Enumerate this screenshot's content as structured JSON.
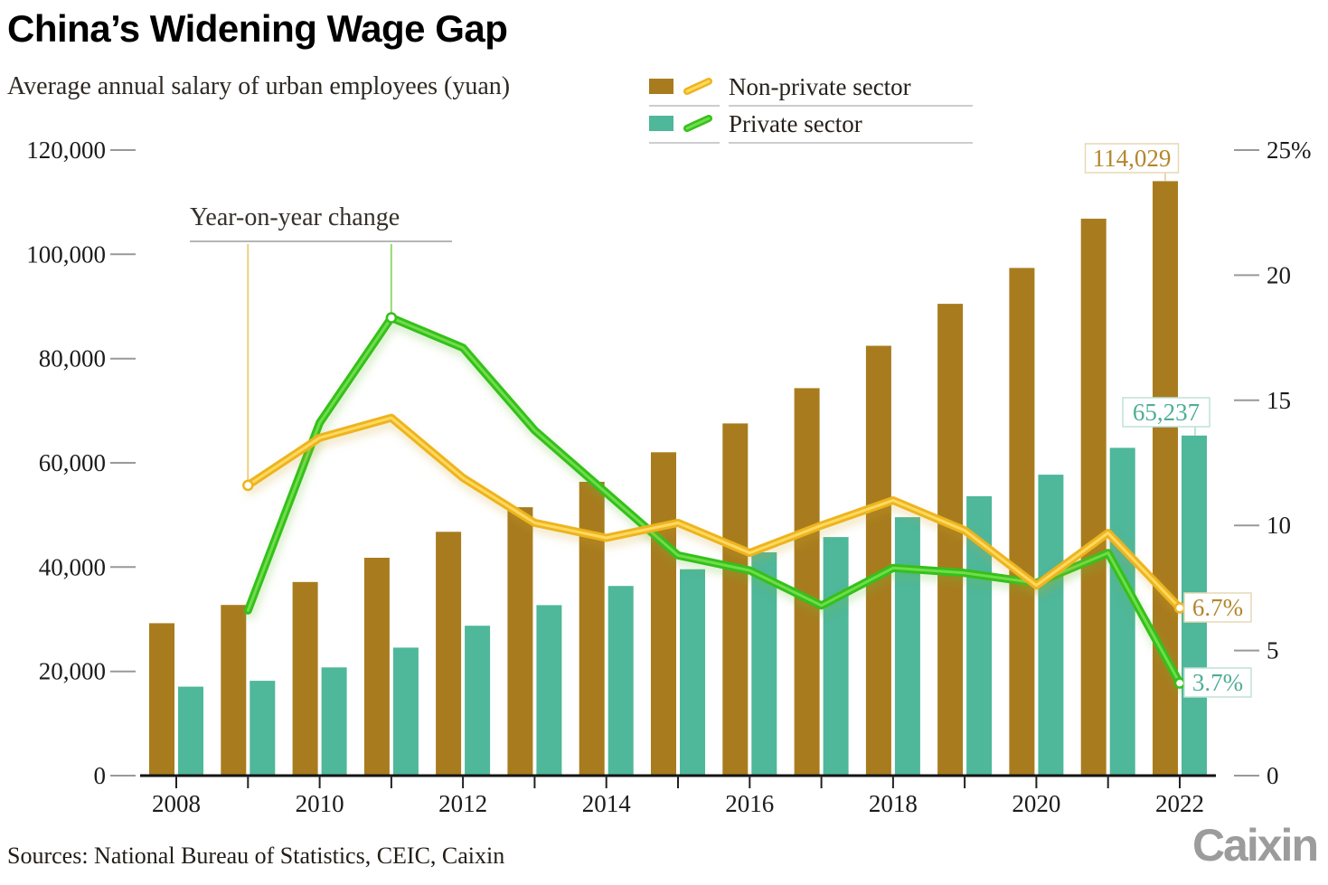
{
  "title": "China’s Widening Wage Gap",
  "subtitle": "Average annual salary of urban employees (yuan)",
  "legend": {
    "items": [
      {
        "label": "Non-private sector",
        "bar_color": "#a87c1e",
        "line_color": "#edb41f",
        "line_core_color": "#ffd95e"
      },
      {
        "label": "Private sector",
        "bar_color": "#4fb79a",
        "line_color": "#35c01b",
        "line_core_color": "#6fdd4a"
      }
    ]
  },
  "annotations": {
    "yoy_label": "Year-on-year change",
    "nonprivate_2022_salary": "114,029",
    "private_2022_salary": "65,237",
    "nonprivate_2022_yoy": "6.7%",
    "private_2022_yoy": "3.7%"
  },
  "footer": {
    "sources": "Sources: National Bureau of Statistics, CEIC, Caixin",
    "logo": "Caixin"
  },
  "colors": {
    "nonprivate_bar": "#a87c1e",
    "private_bar": "#4fb79a",
    "nonprivate_line": "#edb41f",
    "nonprivate_line_core": "#ffd95e",
    "private_line": "#35c01b",
    "private_line_core": "#6fdd4a",
    "annotation_brown_text": "#b3872c",
    "annotation_brown_border": "#e7d9b5",
    "annotation_teal_text": "#4fae96",
    "annotation_teal_border": "#bfe2d7",
    "axis_line": "#141414",
    "tick_dash": "#999999",
    "tick_text": "#1b1b1b",
    "underline_gray": "#cdcdcd"
  },
  "chart_data": {
    "type": "bar",
    "subtype": "grouped bars (salary, left axis) + lines (year-on-year % change, right axis)",
    "x": [
      2008,
      2009,
      2010,
      2011,
      2012,
      2013,
      2014,
      2015,
      2016,
      2017,
      2018,
      2019,
      2020,
      2021,
      2022
    ],
    "x_tick_labels": [
      "2008",
      "2010",
      "2012",
      "2014",
      "2016",
      "2018",
      "2020",
      "2022"
    ],
    "left_axis": {
      "tick_values": [
        0,
        20000,
        40000,
        60000,
        80000,
        100000,
        120000
      ],
      "tick_labels": [
        "0",
        "20,000",
        "40,000",
        "60,000",
        "80,000",
        "100,000",
        "120,000"
      ],
      "range": [
        0,
        120000
      ]
    },
    "right_axis": {
      "tick_values": [
        0,
        5,
        10,
        15,
        20,
        25
      ],
      "tick_labels": [
        "0",
        "5",
        "10",
        "15",
        "20",
        "25%"
      ],
      "range": [
        0,
        25
      ]
    },
    "series": [
      {
        "name": "Non-private sector salary (yuan)",
        "type": "bar",
        "axis": "left",
        "values": [
          29229,
          32736,
          37147,
          41799,
          46769,
          51483,
          56360,
          62029,
          67569,
          74318,
          82461,
          90501,
          97379,
          106837,
          114029
        ]
      },
      {
        "name": "Private sector salary (yuan)",
        "type": "bar",
        "axis": "left",
        "values": [
          17071,
          18199,
          20759,
          24556,
          28752,
          32706,
          36390,
          39589,
          42833,
          45761,
          49575,
          53604,
          57727,
          62884,
          65237
        ]
      },
      {
        "name": "Non-private sector year-on-year change (%)",
        "type": "line",
        "axis": "right",
        "values": [
          null,
          11.6,
          13.5,
          14.3,
          11.9,
          10.1,
          9.5,
          10.1,
          8.9,
          10.0,
          11.0,
          9.8,
          7.6,
          9.7,
          6.7
        ]
      },
      {
        "name": "Private sector year-on-year change (%)",
        "type": "line",
        "axis": "right",
        "values": [
          null,
          6.6,
          14.1,
          18.3,
          17.1,
          13.8,
          11.3,
          8.8,
          8.2,
          6.8,
          8.3,
          8.1,
          7.7,
          8.9,
          3.7
        ]
      }
    ]
  }
}
